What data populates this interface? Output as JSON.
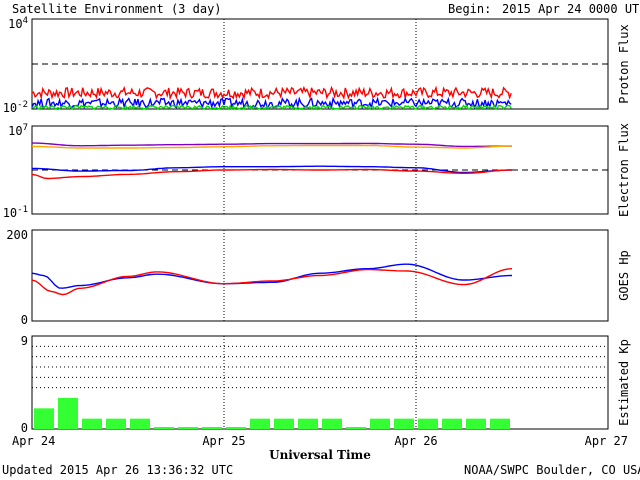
{
  "header": {
    "title": "Satellite Environment (3 day)",
    "begin_label": "Begin:",
    "begin_value": "2015 Apr 24 0000 UTC"
  },
  "footer": {
    "updated": "Updated 2015 Apr 26 13:36:32 UTC",
    "credit": "NOAA/SWPC Boulder, CO USA"
  },
  "chart_data": [
    {
      "type": "line",
      "ylabel": "Proton Flux",
      "yscale": "log",
      "ylim": [
        0.01,
        10000
      ],
      "ytick_labels": [
        "10^4",
        "10^-2"
      ],
      "threshold": 10,
      "series": [
        {
          "color": "#ff0000",
          "level": 0.12,
          "jitter": 0.35
        },
        {
          "color": "#0000ff",
          "level": 0.025,
          "jitter": 0.3
        },
        {
          "color": "#00dd00",
          "level": 0.013,
          "jitter": 0.12
        }
      ]
    },
    {
      "type": "line",
      "ylabel": "Electron Flux",
      "yscale": "log",
      "ylim": [
        0.1,
        10000000
      ],
      "ytick_labels": [
        "10^7",
        "10^-1"
      ],
      "threshold": 1000,
      "series": [
        {
          "color": "#8000c0",
          "x": [
            0,
            0.25,
            0.5,
            0.75,
            1.0,
            1.25,
            1.5,
            1.75,
            2.0,
            2.25,
            2.5
          ],
          "y": [
            280000,
            160000,
            180000,
            200000,
            220000,
            250000,
            250000,
            260000,
            220000,
            140000,
            150000
          ]
        },
        {
          "color": "#ffa500",
          "x": [
            0,
            0.25,
            0.5,
            0.75,
            1.0,
            1.25,
            1.5,
            1.75,
            2.0,
            2.25,
            2.5
          ],
          "y": [
            140000,
            100000,
            100000,
            110000,
            130000,
            160000,
            170000,
            170000,
            120000,
            100000,
            150000
          ]
        },
        {
          "color": "#0000ff",
          "x": [
            0,
            0.25,
            0.5,
            0.75,
            1.0,
            1.25,
            1.5,
            1.75,
            2.0,
            2.25,
            2.5
          ],
          "y": [
            1400,
            800,
            900,
            1600,
            2000,
            2000,
            2200,
            2000,
            1600,
            600,
            1000
          ]
        },
        {
          "color": "#ff0000",
          "x": [
            0,
            0.08,
            0.25,
            0.5,
            0.75,
            1.0,
            1.25,
            1.5,
            1.75,
            2.0,
            2.25,
            2.5
          ],
          "y": [
            400,
            170,
            250,
            400,
            700,
            1000,
            1100,
            1000,
            1100,
            800,
            500,
            1000
          ]
        }
      ]
    },
    {
      "type": "line",
      "ylabel": "GOES Hp",
      "ylim": [
        0,
        200
      ],
      "ytick_labels": [
        "200",
        "0"
      ],
      "series": [
        {
          "color": "#0000ff",
          "x": [
            0,
            0.06,
            0.15,
            0.25,
            0.5,
            0.65,
            1.0,
            1.25,
            1.5,
            1.75,
            1.95,
            2.25,
            2.5
          ],
          "y": [
            105,
            100,
            72,
            78,
            95,
            103,
            82,
            85,
            105,
            115,
            125,
            90,
            100
          ]
        },
        {
          "color": "#ff0000",
          "x": [
            0,
            0.1,
            0.16,
            0.25,
            0.5,
            0.65,
            1.0,
            1.25,
            1.5,
            1.75,
            1.95,
            2.25,
            2.5
          ],
          "y": [
            90,
            65,
            58,
            72,
            98,
            108,
            82,
            88,
            100,
            113,
            110,
            80,
            115
          ]
        }
      ]
    },
    {
      "type": "bar",
      "ylabel": "Estimated Kp",
      "ylim": [
        0,
        9
      ],
      "ytick_labels": [
        "9",
        "0"
      ],
      "bar_width_days": 0.125,
      "values": [
        2,
        3,
        1,
        1,
        1,
        0,
        0,
        0,
        0,
        1,
        1,
        1,
        1,
        0,
        1,
        1,
        1,
        1,
        1,
        1
      ]
    }
  ],
  "x_axis": {
    "range_days": [
      0,
      3
    ],
    "tick_labels": [
      "Apr 24",
      "Apr 25",
      "Apr 26",
      "Apr 27"
    ],
    "label": "Universal Time"
  }
}
